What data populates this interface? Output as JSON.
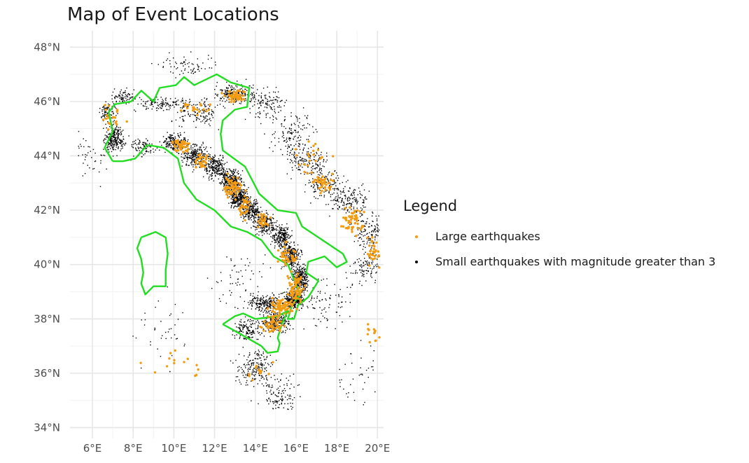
{
  "chart_data": {
    "type": "scatter",
    "title": "Map of Event Locations",
    "xlabel": "",
    "ylabel": "",
    "xlim": [
      4.9,
      20.3
    ],
    "ylim": [
      33.6,
      48.6
    ],
    "x_ticks": [
      6,
      8,
      10,
      12,
      14,
      16,
      18,
      20
    ],
    "x_tick_labels": [
      "6°E",
      "8°E",
      "10°E",
      "12°E",
      "14°E",
      "16°E",
      "18°E",
      "20°E"
    ],
    "y_ticks": [
      34,
      36,
      38,
      40,
      42,
      44,
      46,
      48
    ],
    "y_tick_labels": [
      "34°N",
      "36°N",
      "38°N",
      "40°N",
      "42°N",
      "44°N",
      "46°N",
      "48°N"
    ],
    "grid": true,
    "legend": {
      "title": "Legend",
      "position": "right",
      "entries": [
        {
          "label": "Large earthquakes",
          "color": "#f39c12"
        },
        {
          "label": "Small earthquakes with magnitude greater than 3",
          "color": "#000000"
        }
      ]
    },
    "outline": {
      "color": "#22dd22",
      "italy_mainland": [
        [
          7.0,
          43.8
        ],
        [
          6.6,
          44.3
        ],
        [
          7.0,
          44.9
        ],
        [
          6.8,
          45.6
        ],
        [
          7.1,
          45.9
        ],
        [
          7.9,
          46.0
        ],
        [
          8.4,
          46.4
        ],
        [
          9.0,
          46.0
        ],
        [
          9.3,
          46.5
        ],
        [
          10.1,
          46.6
        ],
        [
          10.5,
          46.9
        ],
        [
          11.0,
          46.6
        ],
        [
          12.1,
          47.0
        ],
        [
          12.8,
          46.7
        ],
        [
          13.7,
          46.5
        ],
        [
          13.6,
          45.8
        ],
        [
          13.0,
          45.7
        ],
        [
          12.4,
          45.3
        ],
        [
          12.3,
          44.8
        ],
        [
          12.4,
          44.2
        ],
        [
          13.5,
          43.6
        ],
        [
          14.2,
          42.6
        ],
        [
          15.1,
          42.0
        ],
        [
          16.0,
          41.9
        ],
        [
          16.3,
          41.4
        ],
        [
          17.5,
          40.8
        ],
        [
          18.3,
          40.4
        ],
        [
          18.5,
          40.1
        ],
        [
          18.0,
          39.9
        ],
        [
          17.4,
          40.3
        ],
        [
          16.6,
          40.1
        ],
        [
          16.5,
          39.7
        ],
        [
          17.1,
          39.4
        ],
        [
          16.6,
          38.8
        ],
        [
          16.1,
          38.5
        ],
        [
          15.9,
          38.0
        ],
        [
          15.6,
          38.0
        ],
        [
          15.8,
          38.5
        ],
        [
          16.2,
          38.9
        ],
        [
          15.6,
          40.0
        ],
        [
          14.9,
          40.3
        ],
        [
          14.3,
          40.9
        ],
        [
          13.6,
          41.2
        ],
        [
          12.8,
          41.4
        ],
        [
          12.0,
          42.0
        ],
        [
          11.1,
          42.4
        ],
        [
          10.5,
          43.0
        ],
        [
          10.2,
          43.9
        ],
        [
          9.5,
          44.3
        ],
        [
          8.7,
          44.4
        ],
        [
          8.1,
          43.9
        ],
        [
          7.5,
          43.8
        ],
        [
          7.0,
          43.8
        ]
      ],
      "sicily": [
        [
          12.4,
          37.8
        ],
        [
          13.0,
          38.1
        ],
        [
          13.4,
          38.2
        ],
        [
          14.0,
          38.0
        ],
        [
          14.6,
          38.05
        ],
        [
          15.1,
          38.1
        ],
        [
          15.6,
          38.3
        ],
        [
          15.3,
          37.8
        ],
        [
          15.1,
          37.3
        ],
        [
          15.2,
          37.1
        ],
        [
          15.1,
          36.8
        ],
        [
          14.6,
          36.75
        ],
        [
          14.3,
          37.0
        ],
        [
          13.6,
          37.3
        ],
        [
          12.9,
          37.6
        ],
        [
          12.4,
          37.8
        ]
      ],
      "sardinia": [
        [
          8.4,
          41.0
        ],
        [
          9.1,
          41.2
        ],
        [
          9.6,
          41.0
        ],
        [
          9.7,
          40.4
        ],
        [
          9.6,
          39.8
        ],
        [
          9.6,
          39.2
        ],
        [
          9.0,
          39.2
        ],
        [
          8.6,
          38.9
        ],
        [
          8.4,
          39.3
        ],
        [
          8.5,
          39.7
        ],
        [
          8.4,
          40.2
        ],
        [
          8.2,
          40.6
        ],
        [
          8.4,
          41.0
        ]
      ]
    }
  }
}
